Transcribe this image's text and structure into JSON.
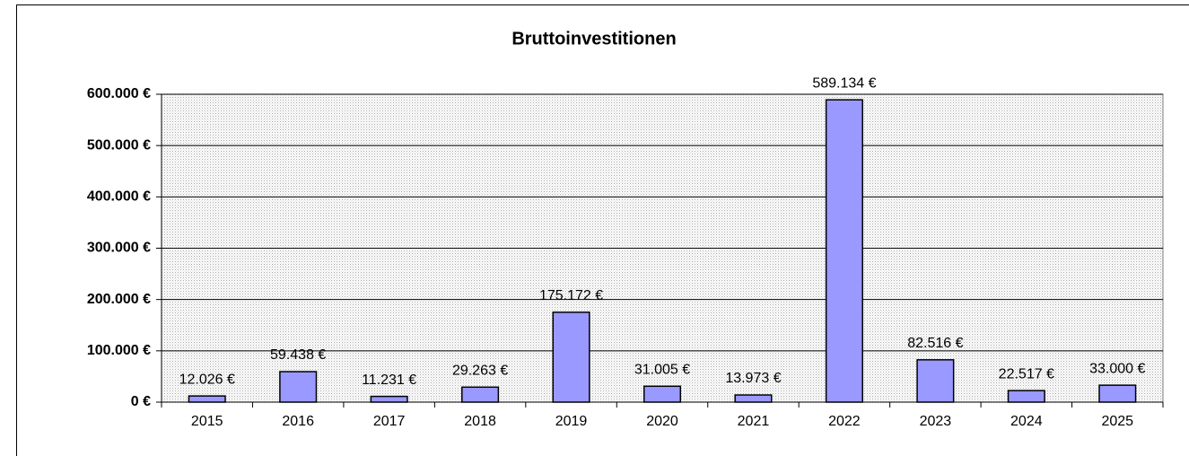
{
  "chart_data": {
    "type": "bar",
    "title": "Bruttoinvestitionen",
    "categories": [
      "2015",
      "2016",
      "2017",
      "2018",
      "2019",
      "2020",
      "2021",
      "2022",
      "2023",
      "2024",
      "2025"
    ],
    "values": [
      12026,
      59438,
      11231,
      29263,
      175172,
      31005,
      13973,
      589134,
      82516,
      22517,
      33000
    ],
    "value_labels": [
      "12.026 €",
      "59.438 €",
      "11.231 €",
      "29.263 €",
      "175.172 €",
      "31.005 €",
      "13.973 €",
      "589.134 €",
      "82.516 €",
      "22.517 €",
      "33.000 €"
    ],
    "color": "#9999ff",
    "ylim": [
      0,
      600000
    ],
    "yticks": [
      {
        "value": 0,
        "label": "0 €"
      },
      {
        "value": 100000,
        "label": "100.000 €"
      },
      {
        "value": 200000,
        "label": "200.000 €"
      },
      {
        "value": 300000,
        "label": "300.000 €"
      },
      {
        "value": 400000,
        "label": "400.000 €"
      },
      {
        "value": 500000,
        "label": "500.000 €"
      },
      {
        "value": 600000,
        "label": "600.000 €"
      }
    ],
    "grid": true
  }
}
